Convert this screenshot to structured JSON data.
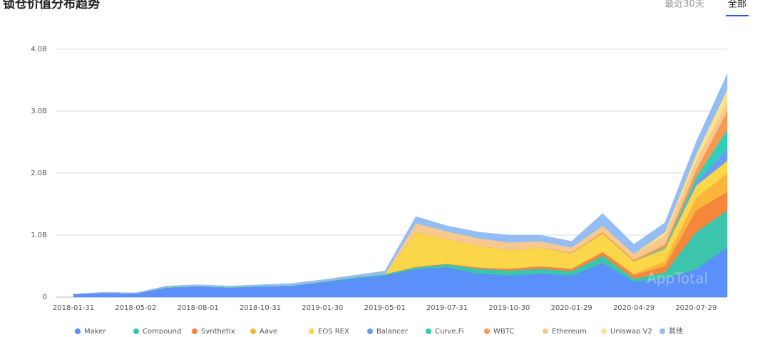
{
  "header": {
    "title": "锁仓价值分布趋势",
    "tabs": [
      "最近30天",
      "全部"
    ],
    "active_tab": 1
  },
  "chart_data": {
    "type": "stacked-area",
    "watermark": "AppTotal",
    "categories": [
      "2018-01-31",
      null,
      "2018-05-02",
      null,
      "2018-08-01",
      null,
      "2018-10-31",
      null,
      "2019-01-30",
      null,
      "2019-05-01",
      null,
      "2019-07-31",
      null,
      "2019-10-30",
      null,
      "2020-01-29",
      null,
      "2020-04-29",
      null,
      "2020-07-29",
      null
    ],
    "ylim": [
      0,
      4
    ],
    "yticks": [
      0,
      {
        "value": 1,
        "label": "1.0B"
      },
      {
        "value": 2,
        "label": "2.0B"
      },
      {
        "value": 3,
        "label": "3.0B"
      },
      {
        "value": 4,
        "label": "4.0B"
      }
    ],
    "grid": true,
    "legend": "bottom",
    "series": [
      {
        "name": "Maker",
        "color": "#5b8ff9",
        "values": [
          0.05,
          0.07,
          0.06,
          0.15,
          0.17,
          0.15,
          0.17,
          0.18,
          0.24,
          0.3,
          0.35,
          0.45,
          0.48,
          0.38,
          0.35,
          0.38,
          0.35,
          0.55,
          0.25,
          0.3,
          0.45,
          0.8
        ]
      },
      {
        "name": "Compound",
        "color": "#3cc4ad",
        "values": [
          0,
          0,
          0,
          0.01,
          0.01,
          0.01,
          0.01,
          0.01,
          0.01,
          0.02,
          0.02,
          0.03,
          0.05,
          0.08,
          0.08,
          0.08,
          0.07,
          0.12,
          0.05,
          0.1,
          0.6,
          0.6
        ]
      },
      {
        "name": "Synthetix",
        "color": "#f5873a",
        "values": [
          0,
          0,
          0,
          0,
          0,
          0,
          0,
          0,
          0,
          0,
          0,
          0.01,
          0.01,
          0.02,
          0.03,
          0.04,
          0.04,
          0.06,
          0.06,
          0.1,
          0.35,
          0.3
        ]
      },
      {
        "name": "Aave",
        "color": "#f9b43c",
        "values": [
          0,
          0,
          0,
          0,
          0,
          0,
          0,
          0,
          0,
          0,
          0,
          0,
          0,
          0,
          0,
          0,
          0,
          0,
          0.02,
          0.08,
          0.2,
          0.3
        ]
      },
      {
        "name": "EOS REX",
        "color": "#fad648",
        "values": [
          0,
          0,
          0,
          0,
          0,
          0,
          0,
          0,
          0,
          0,
          0,
          0.55,
          0.4,
          0.35,
          0.3,
          0.3,
          0.25,
          0.3,
          0.2,
          0.2,
          0.2,
          0.2
        ]
      },
      {
        "name": "Balancer",
        "color": "#6a9cf2",
        "values": [
          0,
          0,
          0,
          0,
          0,
          0,
          0,
          0,
          0,
          0,
          0,
          0,
          0,
          0,
          0,
          0,
          0,
          0,
          0,
          0,
          0.05,
          0.2
        ]
      },
      {
        "name": "Curve.Fi",
        "color": "#2fd0b8",
        "values": [
          0,
          0,
          0,
          0,
          0,
          0,
          0,
          0,
          0,
          0,
          0,
          0,
          0,
          0,
          0,
          0,
          0,
          0,
          0,
          0.02,
          0.08,
          0.3
        ]
      },
      {
        "name": "WBTC",
        "color": "#f59a55",
        "values": [
          0,
          0,
          0,
          0,
          0,
          0,
          0,
          0,
          0,
          0,
          0,
          0,
          0,
          0,
          0,
          0,
          0.01,
          0.02,
          0.02,
          0.05,
          0.12,
          0.3
        ]
      },
      {
        "name": "Ethereum",
        "color": "#f7c98f",
        "values": [
          0,
          0,
          0,
          0,
          0,
          0,
          0,
          0,
          0,
          0,
          0,
          0.15,
          0.12,
          0.12,
          0.12,
          0.1,
          0.08,
          0.1,
          0.1,
          0.15,
          0.15,
          0.15
        ]
      },
      {
        "name": "Uniswap V2",
        "color": "#fbe38d",
        "values": [
          0,
          0,
          0,
          0,
          0,
          0,
          0,
          0,
          0,
          0,
          0,
          0,
          0,
          0,
          0,
          0,
          0,
          0,
          0,
          0.05,
          0.1,
          0.2
        ]
      },
      {
        "name": "其他",
        "color": "#93bdf3",
        "values": [
          0,
          0.01,
          0.01,
          0.02,
          0.02,
          0.02,
          0.02,
          0.03,
          0.03,
          0.03,
          0.05,
          0.11,
          0.09,
          0.1,
          0.12,
          0.1,
          0.1,
          0.2,
          0.15,
          0.15,
          0.2,
          0.25
        ]
      }
    ]
  }
}
